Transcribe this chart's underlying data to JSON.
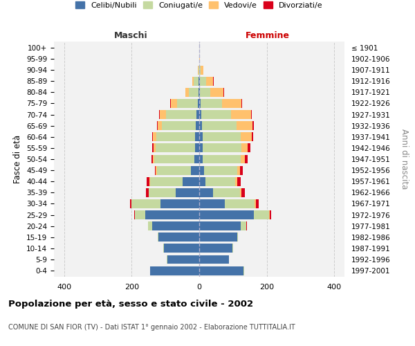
{
  "age_groups": [
    "0-4",
    "5-9",
    "10-14",
    "15-19",
    "20-24",
    "25-29",
    "30-34",
    "35-39",
    "40-44",
    "45-49",
    "50-54",
    "55-59",
    "60-64",
    "65-69",
    "70-74",
    "75-79",
    "80-84",
    "85-89",
    "90-94",
    "95-99",
    "100+"
  ],
  "birth_years": [
    "1997-2001",
    "1992-1996",
    "1987-1991",
    "1982-1986",
    "1977-1981",
    "1972-1976",
    "1967-1971",
    "1962-1966",
    "1957-1961",
    "1952-1956",
    "1947-1951",
    "1942-1946",
    "1937-1941",
    "1932-1936",
    "1927-1931",
    "1922-1926",
    "1917-1921",
    "1912-1916",
    "1907-1911",
    "1902-1906",
    "≤ 1901"
  ],
  "male_celibi": [
    145,
    95,
    105,
    120,
    140,
    160,
    115,
    70,
    50,
    25,
    14,
    12,
    12,
    10,
    8,
    5,
    3,
    2,
    0,
    0,
    0
  ],
  "male_coniugati": [
    1,
    1,
    2,
    2,
    12,
    30,
    85,
    80,
    95,
    100,
    120,
    118,
    115,
    100,
    90,
    60,
    28,
    14,
    3,
    1,
    0
  ],
  "male_vedovi": [
    0,
    0,
    0,
    0,
    0,
    0,
    0,
    0,
    2,
    3,
    4,
    5,
    10,
    12,
    18,
    18,
    10,
    5,
    2,
    0,
    0
  ],
  "male_divorziati": [
    0,
    0,
    0,
    0,
    0,
    2,
    5,
    8,
    8,
    4,
    4,
    4,
    2,
    2,
    2,
    2,
    0,
    0,
    0,
    0,
    0
  ],
  "female_nubili": [
    132,
    88,
    98,
    112,
    122,
    162,
    75,
    40,
    18,
    14,
    10,
    10,
    10,
    8,
    7,
    5,
    3,
    2,
    0,
    0,
    0
  ],
  "female_coniugate": [
    1,
    1,
    2,
    3,
    18,
    45,
    88,
    80,
    88,
    98,
    112,
    115,
    112,
    102,
    88,
    62,
    30,
    18,
    5,
    1,
    0
  ],
  "female_vedove": [
    0,
    0,
    0,
    0,
    0,
    2,
    5,
    5,
    7,
    9,
    14,
    18,
    33,
    48,
    58,
    58,
    38,
    20,
    8,
    1,
    0
  ],
  "female_divorziate": [
    0,
    0,
    0,
    0,
    1,
    3,
    8,
    10,
    10,
    8,
    8,
    8,
    5,
    3,
    3,
    2,
    2,
    2,
    0,
    0,
    0
  ],
  "color_celibi": "#4472a8",
  "color_coniugati": "#c5d9a0",
  "color_vedovi": "#ffc16d",
  "color_divorziati": "#d9001a",
  "xlim": 430,
  "bg_color": "#f2f2f2",
  "title": "Popolazione per età, sesso e stato civile - 2002",
  "subtitle": "COMUNE DI SAN FIOR (TV) - Dati ISTAT 1° gennaio 2002 - Elaborazione TUTTITALIA.IT",
  "label_maschi": "Maschi",
  "label_femmine": "Femmine",
  "ylabel_left": "Fasce di età",
  "ylabel_right": "Anni di nascita",
  "legend_labels": [
    "Celibi/Nubili",
    "Coniugati/e",
    "Vedovi/e",
    "Divorziati/e"
  ]
}
